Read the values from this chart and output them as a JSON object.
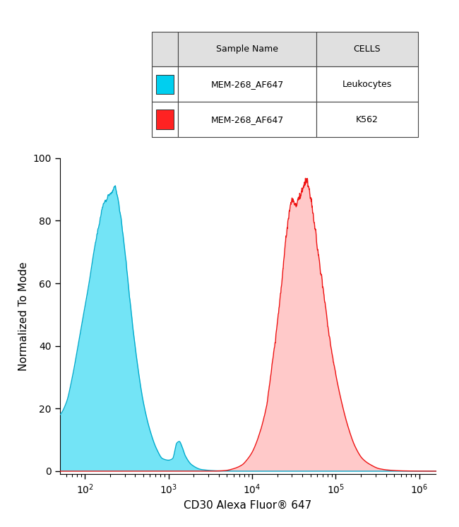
{
  "xlabel": "CD30 Alexa Fluor® 647",
  "ylabel": "Normalized To Mode",
  "xlim_log": [
    1.699,
    6.2
  ],
  "ylim": [
    -1,
    100
  ],
  "yticks": [
    0,
    20,
    40,
    60,
    80,
    100
  ],
  "xtick_positions": [
    2,
    3,
    4,
    5,
    6
  ],
  "blue_color": "#00CFEF",
  "blue_edge": "#00AACC",
  "red_color": "#FF8888",
  "red_edge": "#EE1111",
  "blue_fill_alpha": 0.55,
  "red_fill_alpha": 0.45,
  "overlap_color": "#888899",
  "overlap_alpha": 0.7,
  "bg_color": "#FFFFFF",
  "plot_bg_color": "#FFFFFF",
  "legend_col1_header": "Sample Name",
  "legend_col2_header": "CELLS",
  "legend_row1_col1": "MEM-268_AF647",
  "legend_row1_col2": "Leukocytes",
  "legend_row2_col1": "MEM-268_AF647",
  "legend_row2_col2": "K562",
  "blue_pts_x": [
    1.699,
    1.78,
    1.85,
    1.95,
    2.05,
    2.12,
    2.18,
    2.22,
    2.26,
    2.28,
    2.3,
    2.32,
    2.34,
    2.36,
    2.38,
    2.42,
    2.48,
    2.55,
    2.62,
    2.7,
    2.78,
    2.86,
    2.93,
    3.0,
    3.05,
    3.1,
    3.13,
    3.16,
    3.2,
    3.28,
    3.4,
    3.6,
    3.9,
    4.5,
    6.2
  ],
  "blue_pts_y": [
    18,
    22,
    30,
    45,
    60,
    72,
    80,
    85,
    87,
    88,
    88.5,
    89,
    90,
    91,
    89,
    83,
    70,
    52,
    36,
    22,
    13,
    7,
    4,
    3.5,
    4,
    9,
    9.5,
    8,
    5,
    2,
    0.5,
    0.1,
    0.0,
    0.0,
    0
  ],
  "red_pts_x": [
    1.699,
    3.5,
    3.68,
    3.78,
    3.88,
    3.95,
    4.0,
    4.05,
    4.1,
    4.15,
    4.18,
    4.2,
    4.22,
    4.25,
    4.28,
    4.3,
    4.33,
    4.36,
    4.38,
    4.4,
    4.42,
    4.44,
    4.46,
    4.48,
    4.5,
    4.52,
    4.54,
    4.56,
    4.58,
    4.6,
    4.62,
    4.64,
    4.65,
    4.67,
    4.7,
    4.74,
    4.78,
    4.83,
    4.88,
    4.93,
    5.0,
    5.08,
    5.15,
    5.23,
    5.32,
    5.42,
    5.52,
    5.65,
    5.8,
    6.0,
    6.2
  ],
  "red_pts_y": [
    0,
    0,
    0.2,
    0.8,
    2,
    4,
    6,
    9,
    13,
    18,
    22,
    26,
    30,
    36,
    42,
    47,
    54,
    62,
    68,
    73,
    78,
    82,
    85,
    87,
    86,
    85,
    86,
    87,
    88.5,
    90,
    91,
    92.5,
    93,
    91,
    87,
    80,
    72,
    62,
    52,
    42,
    31,
    21,
    14,
    8,
    4,
    2,
    0.8,
    0.3,
    0.1,
    0.02,
    0
  ]
}
